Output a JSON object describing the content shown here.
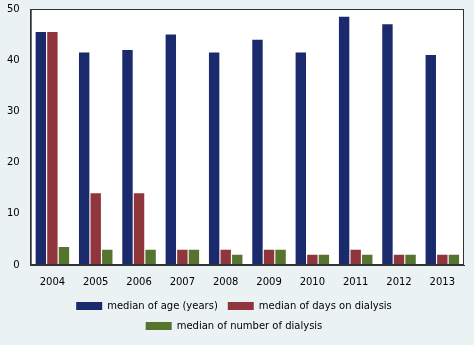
{
  "chart_data": {
    "type": "bar",
    "categories": [
      "2004",
      "2005",
      "2006",
      "2007",
      "2008",
      "2009",
      "2010",
      "2011",
      "2012",
      "2013"
    ],
    "series": [
      {
        "name": "median of age (years)",
        "color": "#1a2a6c",
        "values": [
          45.5,
          41.5,
          42,
          45,
          41.5,
          44,
          41.5,
          48.5,
          47,
          41
        ]
      },
      {
        "name": "median of days on dialysis",
        "color": "#90353b",
        "values": [
          45.5,
          14,
          14,
          3,
          3,
          3,
          2,
          3,
          2,
          2
        ]
      },
      {
        "name": "median of number of dialysis",
        "color": "#55752f",
        "values": [
          3.5,
          3,
          3,
          3,
          2,
          3,
          2,
          2,
          2,
          2
        ]
      }
    ],
    "ylim": [
      0,
      50
    ],
    "yticks": [
      0,
      10,
      20,
      30,
      40,
      50
    ],
    "grid": false,
    "legend": "bottom"
  }
}
